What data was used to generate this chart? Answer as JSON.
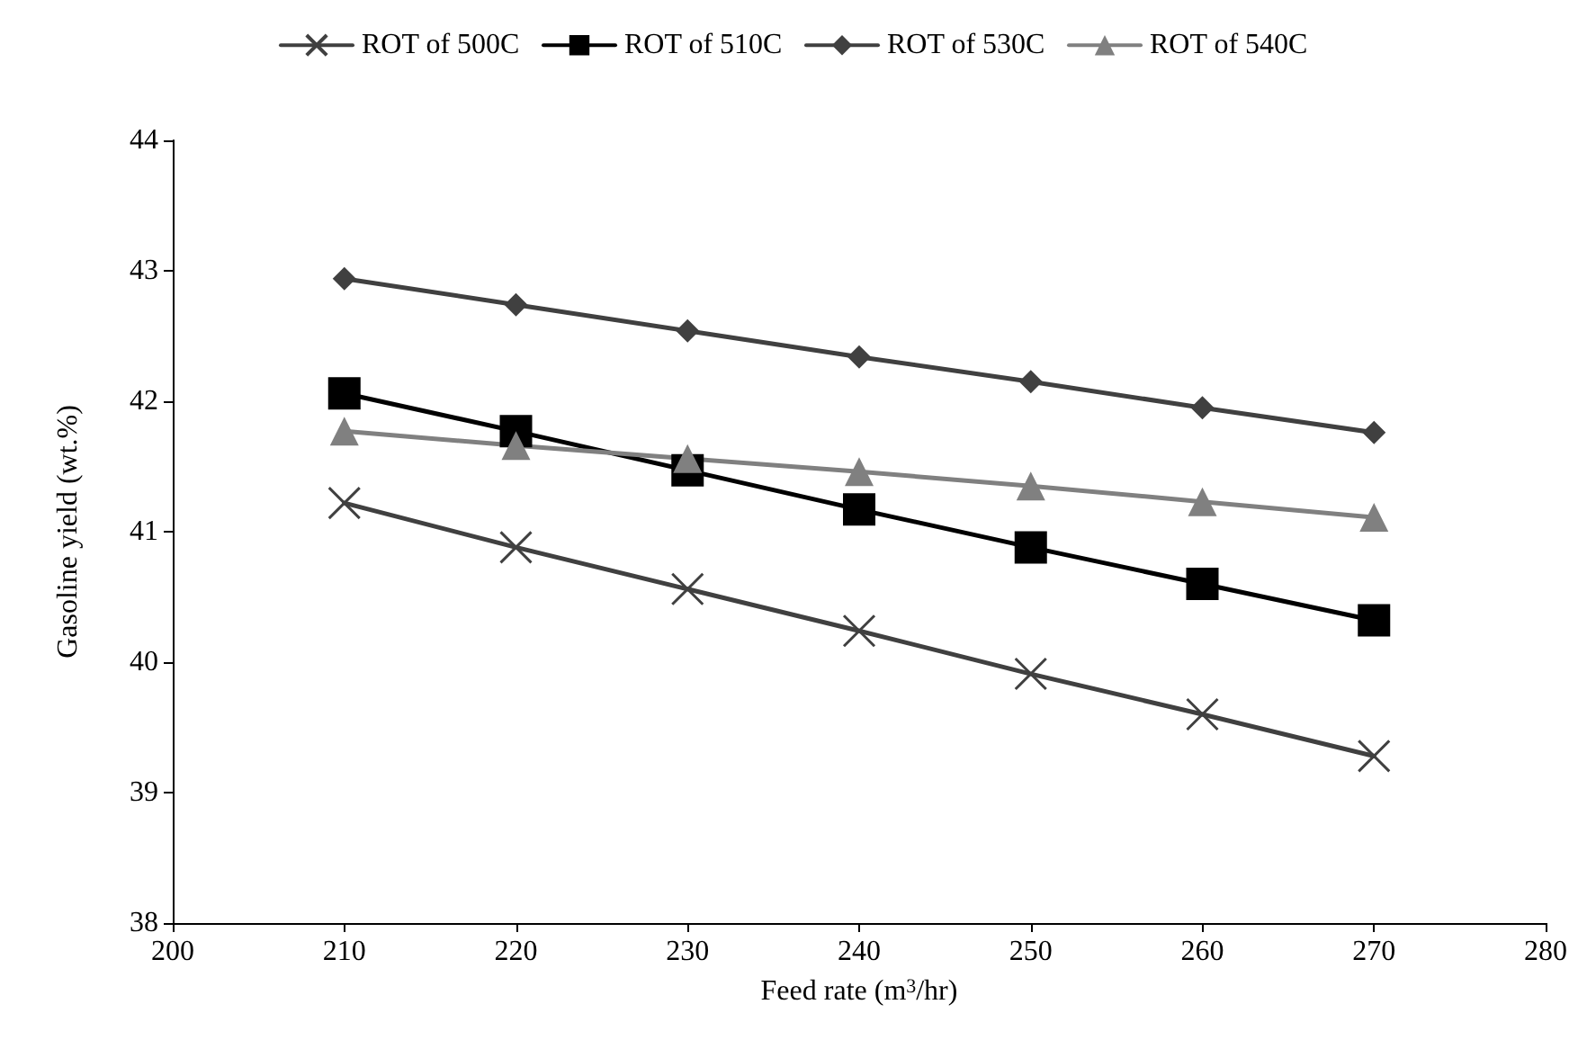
{
  "chart_data": {
    "type": "line",
    "xlabel": "Feed rate (m$^{3}$/hr)",
    "ylabel": "Gasoline yield (wt.%)",
    "x": [
      210,
      220,
      230,
      240,
      250,
      260,
      270
    ],
    "series": [
      {
        "name": "ROT of 500C",
        "color": "#404040",
        "marker": "cross",
        "values": [
          41.22,
          40.88,
          40.56,
          40.24,
          39.91,
          39.6,
          39.28
        ]
      },
      {
        "name": "ROT of 510C",
        "color": "#000000",
        "marker": "square",
        "values": [
          42.06,
          41.77,
          41.47,
          41.17,
          40.88,
          40.6,
          40.32
        ]
      },
      {
        "name": "ROT of 530C",
        "color": "#404040",
        "marker": "diamond",
        "values": [
          42.94,
          42.74,
          42.54,
          42.34,
          42.15,
          41.95,
          41.76
        ]
      },
      {
        "name": "ROT of 540C",
        "color": "#808080",
        "marker": "triangle",
        "values": [
          41.77,
          41.66,
          41.56,
          41.46,
          41.35,
          41.23,
          41.11
        ]
      }
    ],
    "xlim": [
      200,
      280
    ],
    "xticks": [
      200,
      210,
      220,
      230,
      240,
      250,
      260,
      270,
      280
    ],
    "ylim": [
      38,
      44
    ],
    "yticks": [
      38,
      39,
      40,
      41,
      42,
      43,
      44
    ],
    "grid": false,
    "legend": "top",
    "line_style": "solid"
  }
}
